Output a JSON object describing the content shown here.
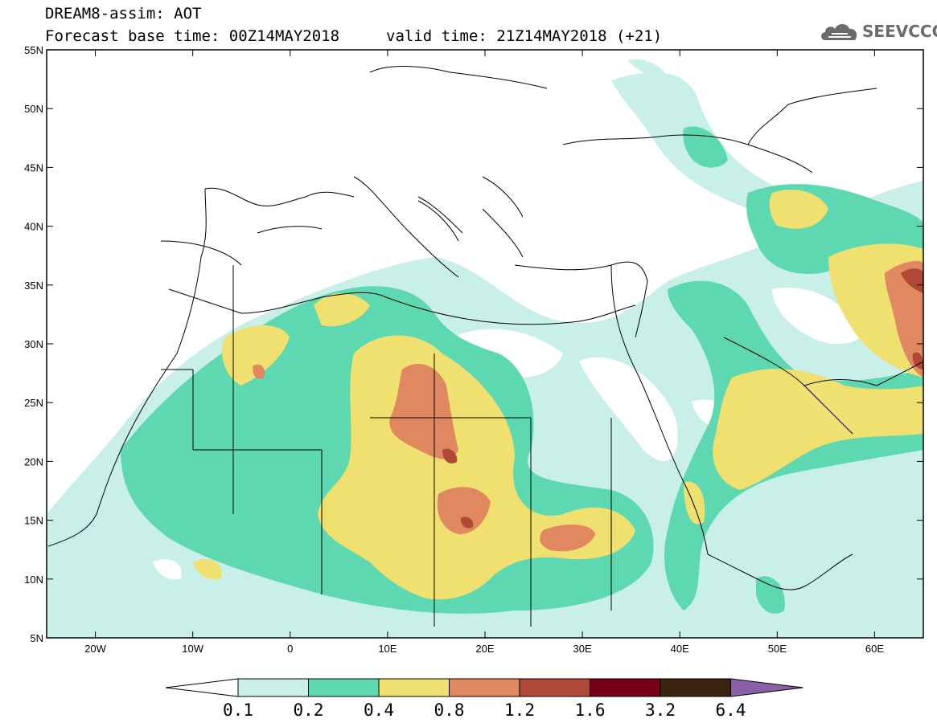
{
  "header": {
    "line1": "DREAM8-assim: AOT",
    "line2": "Forecast base time: 00Z14MAY2018",
    "valid": "valid time: 21Z14MAY2018 (+21)"
  },
  "logo": {
    "text": "SEEVCCC",
    "icon": "cloud-icon"
  },
  "map": {
    "lat_ticks": [
      "55N",
      "50N",
      "45N",
      "40N",
      "35N",
      "30N",
      "25N",
      "20N",
      "15N",
      "10N",
      "5N"
    ],
    "lon_ticks": [
      "20W",
      "10W",
      "0",
      "10E",
      "20E",
      "30E",
      "40E",
      "50E",
      "60E"
    ],
    "lat_range": [
      5,
      55
    ],
    "lon_range": [
      -25,
      65
    ]
  },
  "colorbar": {
    "levels": [
      "0.1",
      "0.2",
      "0.4",
      "0.8",
      "1.2",
      "1.6",
      "3.2",
      "6.4"
    ],
    "colors": [
      "#ffffff",
      "#c8f0e8",
      "#5ed8b0",
      "#f0e070",
      "#e08860",
      "#b04838",
      "#780018",
      "#3a2410",
      "#8a60a8"
    ]
  }
}
